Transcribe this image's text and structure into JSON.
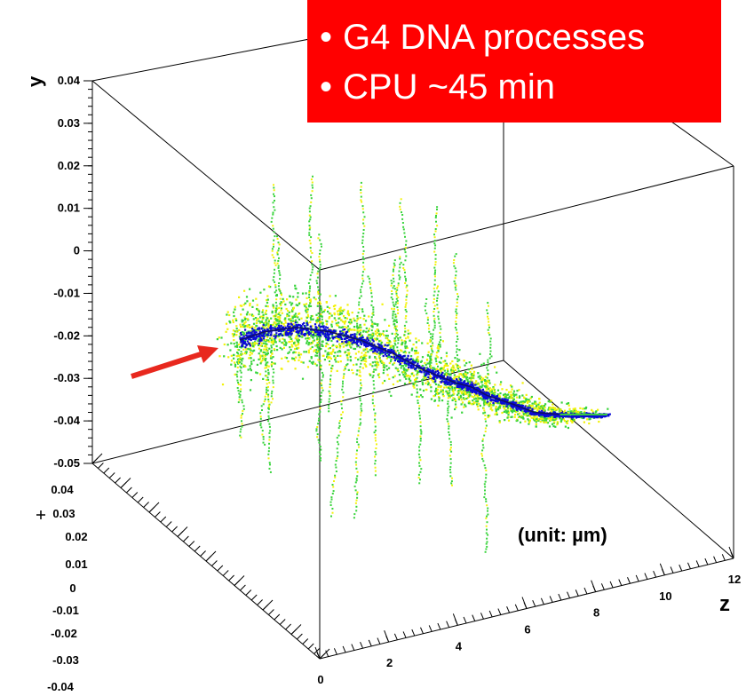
{
  "callout": {
    "lines": [
      "G4 DNA processes",
      "CPU ~45 min"
    ]
  },
  "unit_note": "(unit: µm)",
  "colors": {
    "callout_bg": "#ff0000",
    "arrow": "#e8281e",
    "primary_track": "#0b0bd6",
    "core_line": "#101060",
    "secondary_green": "#39d43c",
    "secondary_yellow": "#f2f20a"
  },
  "chart_data": {
    "type": "scatter",
    "projection": "3d",
    "title": "",
    "axes": {
      "y": {
        "label": "y",
        "ticks": [
          "0.04",
          "0.03",
          "0.02",
          "0.01",
          "0",
          "-0.01",
          "-0.02",
          "-0.03",
          "-0.04",
          "-0.05"
        ],
        "range": [
          -0.05,
          0.04
        ]
      },
      "x": {
        "label": "",
        "ticks": [
          "0.04",
          "0.03",
          "0.02",
          "0.01",
          "0",
          "-0.01",
          "-0.02",
          "-0.03",
          "-0.04"
        ],
        "range": [
          -0.04,
          0.04
        ]
      },
      "z": {
        "label": "z",
        "ticks": [
          "0",
          "2",
          "4",
          "6",
          "8",
          "10",
          "12"
        ],
        "range": [
          0,
          12
        ]
      }
    },
    "series": [
      {
        "role": "primary-track",
        "color": "#0b0bd6",
        "points": [
          {
            "z": 0.2,
            "y": -0.021
          },
          {
            "z": 1.0,
            "y": -0.019
          },
          {
            "z": 2.0,
            "y": -0.018
          },
          {
            "z": 3.0,
            "y": -0.019
          },
          {
            "z": 4.0,
            "y": -0.021
          },
          {
            "z": 5.0,
            "y": -0.024
          },
          {
            "z": 6.0,
            "y": -0.028
          },
          {
            "z": 7.0,
            "y": -0.031
          },
          {
            "z": 7.5,
            "y": -0.032
          },
          {
            "z": 8.0,
            "y": -0.034
          },
          {
            "z": 8.8,
            "y": -0.036
          },
          {
            "z": 9.5,
            "y": -0.038
          },
          {
            "z": 10.3,
            "y": -0.0385
          },
          {
            "z": 11.2,
            "y": -0.0385
          },
          {
            "z": 11.8,
            "y": -0.0385
          }
        ]
      },
      {
        "role": "secondary-electrons",
        "colors": [
          "#39d43c",
          "#f2f20a"
        ]
      }
    ]
  }
}
